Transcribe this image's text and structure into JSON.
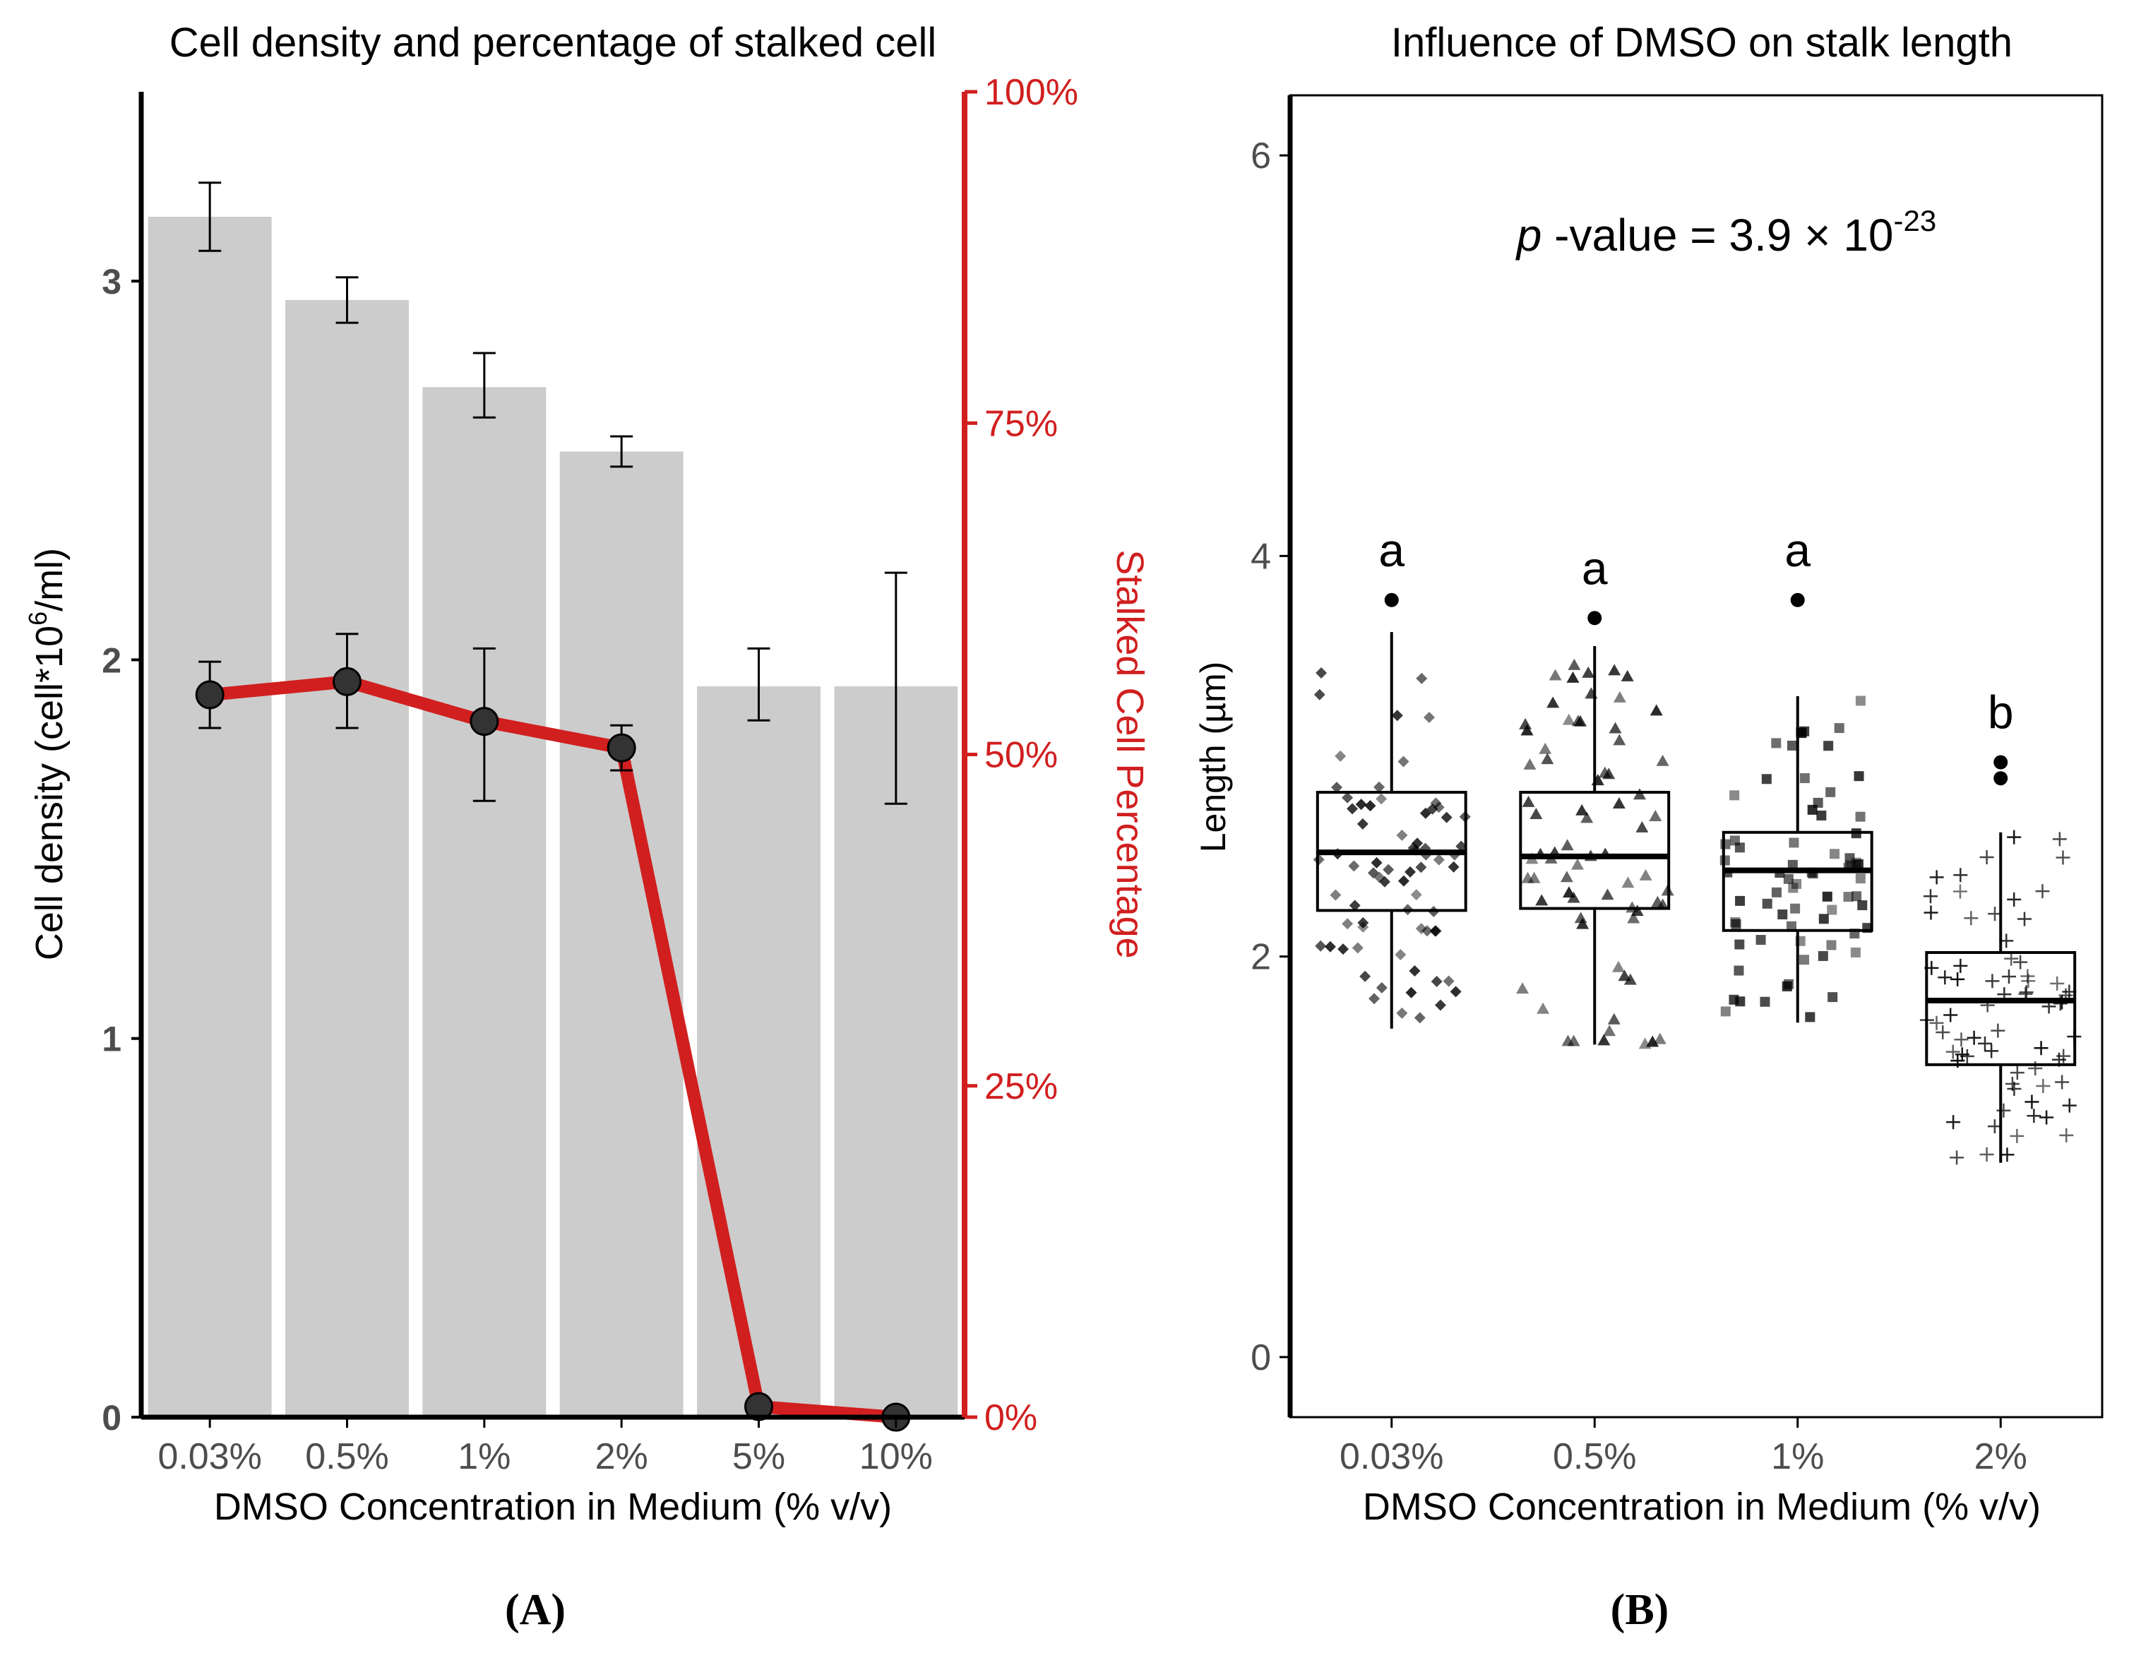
{
  "colors": {
    "accent_red": "#d11f1f",
    "bar_gray": "#cccccc",
    "point_dark": "#333333",
    "axis_black": "#000000",
    "tick_gray": "#4d4d4d"
  },
  "chart_data": [
    {
      "panel": "A",
      "panel_label": "(A)",
      "type": "bar",
      "title": "Cell density and percentage of stalked cell",
      "xlabel": "DMSO Concentration in Medium (% v/v)",
      "ylabel_prefix": "Cell density (cell*10",
      "ylabel_sup": "6",
      "ylabel_suffix": "/ml)",
      "y2label": "Stalked Cell Percentage",
      "categories": [
        "0.03%",
        "0.5%",
        "1%",
        "2%",
        "5%",
        "10%"
      ],
      "ylim": [
        0,
        3.5
      ],
      "yticks": [
        0,
        1,
        2,
        3
      ],
      "ytick_labels": [
        "0",
        "1",
        "2",
        "3"
      ],
      "y2lim": [
        0,
        100
      ],
      "y2ticks": [
        0,
        25,
        50,
        75,
        100
      ],
      "y2tick_labels": [
        "0%",
        "25%",
        "50%",
        "75%",
        "100%"
      ],
      "bars": {
        "name": "Cell density",
        "values": [
          3.17,
          2.95,
          2.72,
          2.55,
          1.93,
          1.93
        ],
        "err_low": [
          3.08,
          2.89,
          2.64,
          2.51,
          1.84,
          1.62
        ],
        "err_high": [
          3.26,
          3.01,
          2.81,
          2.59,
          2.03,
          2.23
        ]
      },
      "line": {
        "name": "Stalked Cell Percentage",
        "values": [
          54.5,
          55.5,
          52.5,
          50.5,
          0.8,
          0
        ],
        "err_low": [
          52,
          52,
          46.5,
          48.8,
          null,
          null
        ],
        "err_high": [
          57,
          59.1,
          58,
          52.2,
          null,
          null
        ]
      }
    },
    {
      "panel": "B",
      "panel_label": "(B)",
      "type": "box",
      "title": "Influence of DMSO on stalk length",
      "xlabel": "DMSO Concentration in Medium (% v/v)",
      "ylabel": "Length (µm)",
      "categories": [
        "0.03%",
        "0.5%",
        "1%",
        "2%"
      ],
      "ylim": [
        -0.3,
        6.3
      ],
      "yticks": [
        0,
        2,
        4,
        6
      ],
      "ytick_labels": [
        "0",
        "2",
        "4",
        "6"
      ],
      "annotation_p": "p",
      "annotation_text": " -value = 3.9 × 10",
      "annotation_exp": "-23",
      "boxes": [
        {
          "q1": 2.23,
          "median": 2.52,
          "q3": 2.82,
          "whisker_low": 1.64,
          "whisker_high": 3.62,
          "outliers": [
            3.78
          ],
          "letter": "a",
          "shape": "diamond"
        },
        {
          "q1": 2.24,
          "median": 2.5,
          "q3": 2.82,
          "whisker_low": 1.56,
          "whisker_high": 3.55,
          "outliers": [
            3.69
          ],
          "letter": "a",
          "shape": "triangle"
        },
        {
          "q1": 2.13,
          "median": 2.43,
          "q3": 2.62,
          "whisker_low": 1.67,
          "whisker_high": 3.3,
          "outliers": [
            3.78
          ],
          "letter": "a",
          "shape": "square"
        },
        {
          "q1": 1.46,
          "median": 1.78,
          "q3": 2.02,
          "whisker_low": 0.97,
          "whisker_high": 2.62,
          "outliers": [
            2.97,
            2.89
          ],
          "letter": "b",
          "shape": "plus"
        }
      ]
    }
  ]
}
